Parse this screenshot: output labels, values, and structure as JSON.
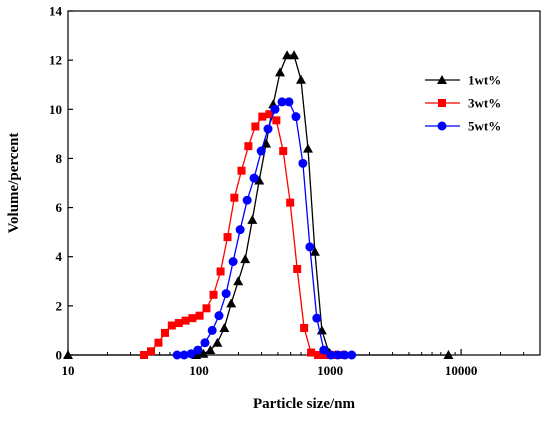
{
  "chart_data": {
    "type": "line",
    "title": "",
    "xlabel": "Particle size/nm",
    "ylabel": "Volume/percent",
    "x_scale": "log",
    "xlim": [
      10,
      40000
    ],
    "ylim": [
      0,
      14
    ],
    "x_ticks": [
      10,
      100,
      1000,
      10000
    ],
    "x_tick_labels": [
      "10",
      "100",
      "1000",
      "10000"
    ],
    "y_ticks": [
      0,
      2,
      4,
      6,
      8,
      10,
      12,
      14
    ],
    "y_tick_labels": [
      "0",
      "2",
      "4",
      "6",
      "8",
      "10",
      "12",
      "14"
    ],
    "grid": false,
    "legend_position": "top-right",
    "series": [
      {
        "name": "1wt%",
        "color": "#000000",
        "marker": "triangle",
        "x": [
          10,
          95,
          108,
          122,
          138,
          156,
          176,
          199,
          225,
          255,
          288,
          325,
          368,
          415,
          470,
          531,
          600,
          678,
          766,
          866,
          979,
          1106,
          1250,
          8000
        ],
        "y": [
          0,
          0,
          0.05,
          0.2,
          0.5,
          1.1,
          2.1,
          3.0,
          3.9,
          5.5,
          7.1,
          8.6,
          10.2,
          11.5,
          12.2,
          12.2,
          11.2,
          8.4,
          4.2,
          1.0,
          0.1,
          0,
          0,
          0
        ]
      },
      {
        "name": "3wt%",
        "color": "#ff0000",
        "marker": "square",
        "x": [
          38,
          43,
          49,
          55,
          62,
          70,
          79,
          89,
          101,
          114,
          129,
          146,
          165,
          186,
          211,
          238,
          269,
          304,
          344,
          389,
          439,
          496,
          561,
          634,
          716,
          809,
          915,
          1034,
          1168
        ],
        "y": [
          0,
          0.15,
          0.5,
          0.9,
          1.2,
          1.3,
          1.4,
          1.5,
          1.6,
          1.9,
          2.45,
          3.4,
          4.8,
          6.4,
          7.5,
          8.5,
          9.3,
          9.7,
          9.8,
          9.55,
          8.3,
          6.2,
          3.5,
          1.1,
          0.1,
          0,
          0,
          0,
          0
        ]
      },
      {
        "name": "5wt%",
        "color": "#0000ff",
        "marker": "circle",
        "x": [
          68,
          77,
          87,
          98,
          111,
          126,
          142,
          161,
          182,
          206,
          233,
          263,
          298,
          336,
          380,
          430,
          486,
          549,
          620,
          701,
          792,
          896,
          1012,
          1144,
          1293,
          1462
        ],
        "y": [
          0,
          0,
          0.05,
          0.2,
          0.5,
          1.0,
          1.6,
          2.5,
          3.8,
          5.1,
          6.3,
          7.2,
          8.3,
          9.2,
          10.0,
          10.3,
          10.3,
          9.7,
          7.8,
          4.4,
          1.5,
          0.2,
          0,
          0,
          0,
          0
        ]
      }
    ]
  }
}
